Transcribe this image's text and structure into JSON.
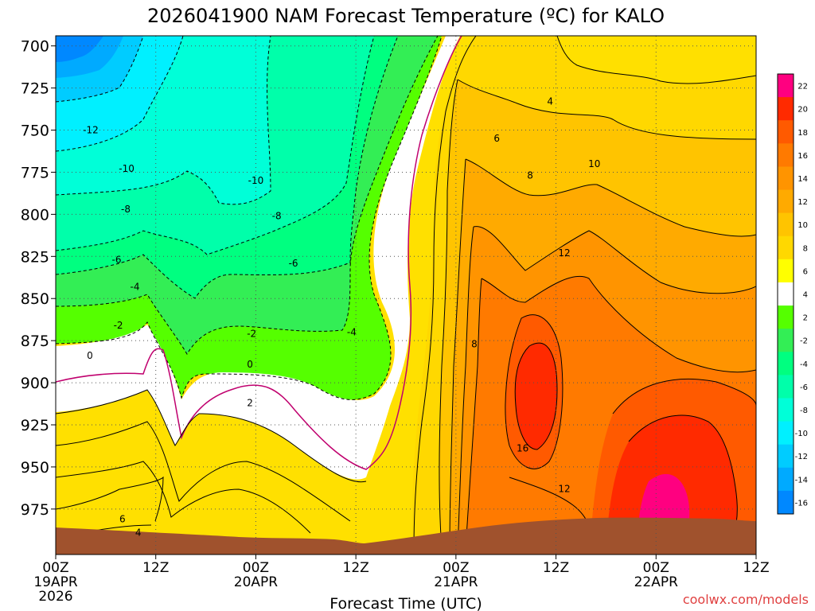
{
  "chart_data": {
    "type": "heatmap",
    "title": "2026041900 NAM Forecast Temperature (ºC) for KALO",
    "xlabel": "Forecast Time (UTC)",
    "ylabel": "",
    "credit": "coolwx.com/models",
    "y_ticks": [
      "700",
      "725",
      "750",
      "775",
      "800",
      "825",
      "850",
      "875",
      "900",
      "925",
      "950",
      "975"
    ],
    "y_tick_values": [
      700,
      725,
      750,
      775,
      800,
      825,
      850,
      875,
      900,
      925,
      950,
      975
    ],
    "ylim": [
      694,
      1002
    ],
    "x_ticks": [
      {
        "hour": 0,
        "l1": "00Z",
        "l2": "19APR",
        "l3": "2026"
      },
      {
        "hour": 12,
        "l1": "12Z",
        "l2": "",
        "l3": ""
      },
      {
        "hour": 24,
        "l1": "00Z",
        "l2": "20APR",
        "l3": ""
      },
      {
        "hour": 36,
        "l1": "12Z",
        "l2": "",
        "l3": ""
      },
      {
        "hour": 48,
        "l1": "00Z",
        "l2": "21APR",
        "l3": ""
      },
      {
        "hour": 60,
        "l1": "12Z",
        "l2": "",
        "l3": ""
      },
      {
        "hour": 72,
        "l1": "00Z",
        "l2": "22APR",
        "l3": ""
      },
      {
        "hour": 84,
        "l1": "12Z",
        "l2": "",
        "l3": ""
      }
    ],
    "xlim": [
      0,
      84
    ],
    "colorbar": {
      "labels": [
        "22",
        "20",
        "18",
        "16",
        "14",
        "12",
        "10",
        "8",
        "6",
        "4",
        "2",
        "-2",
        "-4",
        "-6",
        "-8",
        "-10",
        "-12",
        "-14",
        "-16"
      ],
      "bins": [
        "#ff0080",
        "#ff2a00",
        "#ff5a00",
        "#ff7a00",
        "#ff9400",
        "#ffaa00",
        "#ffc400",
        "#ffd800",
        "#ffff00",
        "#ffffff",
        "#55ff00",
        "#33ee55",
        "#00ff80",
        "#00ffaa",
        "#00ffd8",
        "#00f0ff",
        "#00ccff",
        "#00aaff",
        "#0088ff"
      ]
    },
    "contour_labels": [
      {
        "text": "-12",
        "hour": 4.2,
        "p": 750
      },
      {
        "text": "-10",
        "hour": 8.5,
        "p": 773
      },
      {
        "text": "-10",
        "hour": 24.0,
        "p": 780
      },
      {
        "text": "-8",
        "hour": 8.4,
        "p": 797
      },
      {
        "text": "-8",
        "hour": 26.5,
        "p": 801
      },
      {
        "text": "-6",
        "hour": 7.3,
        "p": 827
      },
      {
        "text": "-6",
        "hour": 28.5,
        "p": 829
      },
      {
        "text": "-4",
        "hour": 9.5,
        "p": 843
      },
      {
        "text": "-4",
        "hour": 35.5,
        "p": 870
      },
      {
        "text": "-2",
        "hour": 7.5,
        "p": 866
      },
      {
        "text": "-2",
        "hour": 23.5,
        "p": 871
      },
      {
        "text": "0",
        "hour": 4.1,
        "p": 884
      },
      {
        "text": "0",
        "hour": 23.3,
        "p": 889
      },
      {
        "text": "2",
        "hour": 23.3,
        "p": 912
      },
      {
        "text": "4",
        "hour": 59.3,
        "p": 733
      },
      {
        "text": "6",
        "hour": 52.9,
        "p": 755
      },
      {
        "text": "8",
        "hour": 56.9,
        "p": 777
      },
      {
        "text": "10",
        "hour": 64.6,
        "p": 770
      },
      {
        "text": "12",
        "hour": 61.0,
        "p": 823
      },
      {
        "text": "8",
        "hour": 50.2,
        "p": 877
      },
      {
        "text": "16",
        "hour": 56.0,
        "p": 939
      },
      {
        "text": "12",
        "hour": 61.0,
        "p": 963
      },
      {
        "text": "6",
        "hour": 8.0,
        "p": 981
      },
      {
        "text": "4",
        "hour": 9.9,
        "p": 989
      }
    ]
  }
}
